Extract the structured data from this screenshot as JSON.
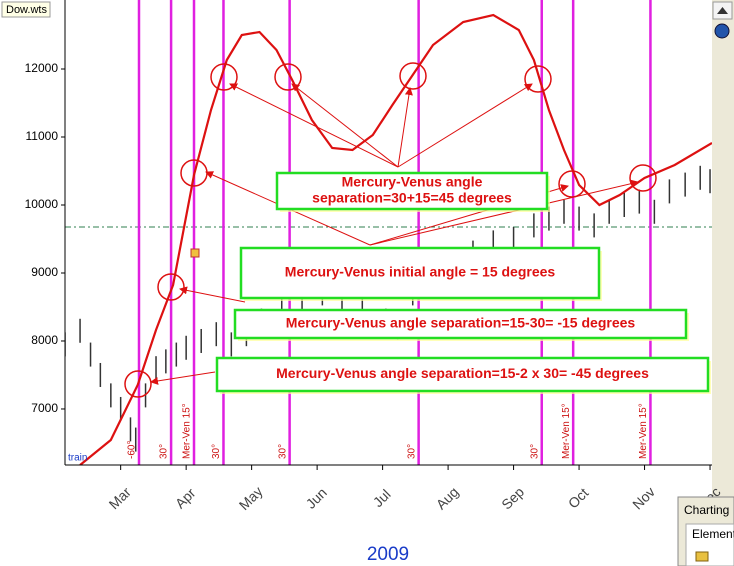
{
  "chart_data": {
    "type": "line",
    "title": "Dow.wts",
    "xlabel": "2009",
    "xlim": [
      2.15,
      12.03
    ],
    "xticks": [
      {
        "value": 3,
        "label": "Mar"
      },
      {
        "value": 4,
        "label": "Apr"
      },
      {
        "value": 5,
        "label": "May"
      },
      {
        "value": 6,
        "label": "Jun"
      },
      {
        "value": 7,
        "label": "Jul"
      },
      {
        "value": 8,
        "label": "Aug"
      },
      {
        "value": 9,
        "label": "Sep"
      },
      {
        "value": 10,
        "label": "Oct"
      },
      {
        "value": 11,
        "label": "Nov"
      },
      {
        "value": 12,
        "label": "Dec"
      }
    ],
    "ylim": [
      6176,
      13015
    ],
    "yticks": [
      7000,
      8000,
      9000,
      10000,
      11000,
      12000
    ],
    "reference_line": {
      "value": 9676,
      "color": "#2f7f4f"
    },
    "corner_label": "train",
    "series": [
      {
        "name": "Dow",
        "color": "#333333",
        "x": [
          2.15,
          2.38,
          2.54,
          2.69,
          2.85,
          3.0,
          3.15,
          3.23,
          3.38,
          3.54,
          3.69,
          3.85,
          4.0,
          4.23,
          4.46,
          4.69,
          4.92,
          5.15,
          5.46,
          5.77,
          6.08,
          6.38,
          6.69,
          7.05,
          7.23,
          7.46,
          7.77,
          8.08,
          8.38,
          8.69,
          9.0,
          9.31,
          9.54,
          9.77,
          10.0,
          10.23,
          10.46,
          10.69,
          10.92,
          11.15,
          11.38,
          11.62,
          11.85,
          12.0
        ],
        "values": [
          7950,
          8150,
          7800,
          7500,
          7200,
          7000,
          6700,
          6550,
          7200,
          7600,
          7700,
          7800,
          7900,
          8000,
          8100,
          7950,
          8100,
          8300,
          8450,
          8600,
          8700,
          8500,
          8600,
          8300,
          8200,
          8700,
          9000,
          9200,
          9300,
          9450,
          9500,
          9700,
          9800,
          9900,
          9800,
          9700,
          9900,
          10000,
          10050,
          9900,
          10200,
          10300,
          10400,
          10350
        ]
      },
      {
        "name": "Mercury-Venus",
        "color": "#dd1111",
        "x": [
          2.38,
          2.85,
          3.26,
          3.54,
          3.8,
          4.12,
          4.38,
          4.62,
          4.85,
          5.12,
          5.38,
          5.62,
          5.92,
          6.23,
          6.54,
          6.85,
          7.15,
          7.46,
          7.77,
          8.23,
          8.69,
          9.08,
          9.31,
          9.54,
          9.77,
          10.0,
          10.31,
          10.62,
          11.0,
          11.46,
          12.03
        ],
        "values": [
          6176,
          6544,
          7353,
          8162,
          8824,
          10441,
          11397,
          12132,
          12500,
          12544,
          12279,
          11838,
          11250,
          10838,
          10809,
          11029,
          11471,
          11912,
          12353,
          12691,
          12794,
          12574,
          12132,
          11397,
          10809,
          10294,
          10000,
          10147,
          10397,
          10588,
          10912
        ]
      }
    ],
    "events": [
      {
        "x": 3.28,
        "label": "-60°"
      },
      {
        "x": 3.77,
        "label": "30°"
      },
      {
        "x": 4.12,
        "label": "Mer-Ven 15°"
      },
      {
        "x": 4.57,
        "label": "30°"
      },
      {
        "x": 5.58,
        "label": "30°"
      },
      {
        "x": 7.55,
        "label": "30°"
      },
      {
        "x": 9.43,
        "label": "30°"
      },
      {
        "x": 9.91,
        "label": "Mer-Ven 15°"
      },
      {
        "x": 11.09,
        "label": "Mer-Ven 15°"
      }
    ],
    "annotations": [
      [
        "Mercury-Venus angle",
        "separation=30+15=45 degrees"
      ],
      [
        "Mercury-Venus initial angle = 15 degrees"
      ],
      [
        "Mercury-Venus angle separation=15-30= -15 degrees"
      ],
      [
        "Mercury-Venus angle separation=15-2 x 30= -45 degrees"
      ]
    ],
    "panel": {
      "title": "Charting",
      "tab": "Elements"
    }
  }
}
